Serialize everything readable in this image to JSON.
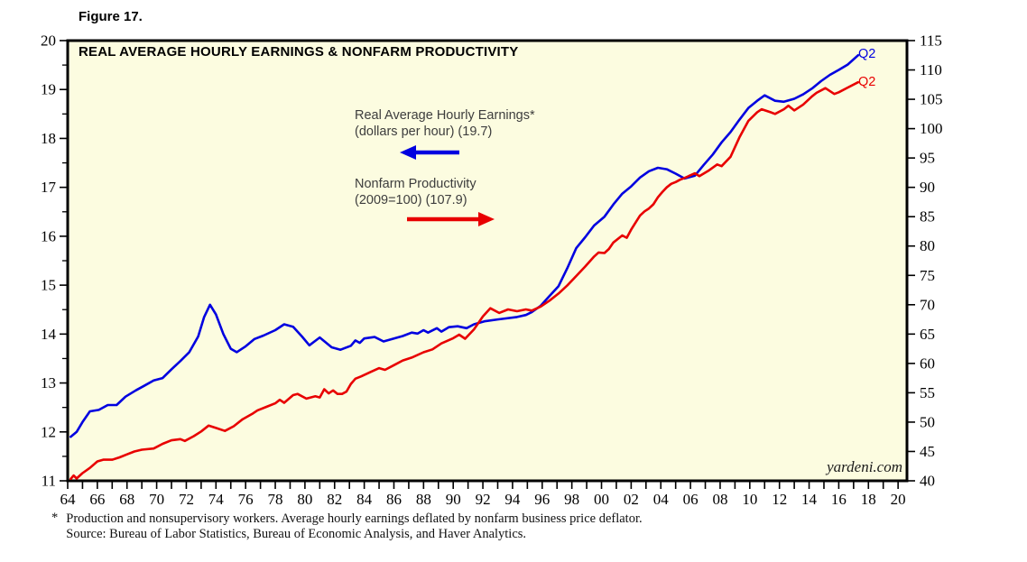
{
  "figure_label": "Figure 17.",
  "chart": {
    "title": "REAL AVERAGE HOURLY EARNINGS & NONFARM PRODUCTIVITY",
    "plot_bg": "#FCFCE0",
    "border_color": "#000000",
    "watermark": "yardeni.com",
    "legend": {
      "earnings": {
        "line1": "Real Average Hourly Earnings*",
        "line2": "(dollars per hour) (19.7)",
        "arrow": "left"
      },
      "productivity": {
        "line1": "Nonfarm Productivity",
        "line2": "(2009=100) (107.9)",
        "arrow": "right"
      }
    },
    "end_labels": {
      "earnings": "Q2",
      "productivity": "Q2"
    }
  },
  "footnote": {
    "asterisk": "*",
    "line1": "Production and nonsupervisory workers. Average hourly earnings deflated by nonfarm business price deflator.",
    "line2": "Source: Bureau of Labor Statistics, Bureau of Economic Analysis, and Haver Analytics."
  },
  "chart_data": {
    "type": "line",
    "title": "REAL AVERAGE HOURLY EARNINGS & NONFARM PRODUCTIVITY",
    "grid": false,
    "legend_position": "inline-annotations-upper-left",
    "x_axis": {
      "range": [
        1964,
        2020.6
      ],
      "tick_every_years": 1,
      "label_years": [
        1964,
        1966,
        1968,
        1970,
        1972,
        1974,
        1976,
        1978,
        1980,
        1982,
        1984,
        1986,
        1988,
        1990,
        1992,
        1994,
        1996,
        1998,
        2000,
        2002,
        2004,
        2006,
        2008,
        2010,
        2012,
        2014,
        2016,
        2018,
        2020
      ],
      "labels": [
        "64",
        "66",
        "68",
        "70",
        "72",
        "74",
        "76",
        "78",
        "80",
        "82",
        "84",
        "86",
        "88",
        "90",
        "92",
        "94",
        "96",
        "98",
        "00",
        "02",
        "04",
        "06",
        "08",
        "10",
        "12",
        "14",
        "16",
        "18",
        "20"
      ]
    },
    "left_axis": {
      "title": "Real Average Hourly Earnings (dollars per hour)",
      "range": [
        11,
        20
      ],
      "tick_step": 1,
      "minor_step": 0.5,
      "labels": [
        "11",
        "12",
        "13",
        "14",
        "15",
        "16",
        "17",
        "18",
        "19",
        "20"
      ]
    },
    "right_axis": {
      "title": "Nonfarm Productivity (2009=100)",
      "range": [
        40,
        115
      ],
      "tick_step": 5,
      "labels": [
        "40",
        "45",
        "50",
        "55",
        "60",
        "65",
        "70",
        "75",
        "80",
        "85",
        "90",
        "95",
        "100",
        "105",
        "110",
        "115"
      ]
    },
    "series": [
      {
        "name": "Real Average Hourly Earnings (dollars per hour)",
        "axis": "left",
        "color": "#0000E0",
        "end_label": "Q2",
        "latest_period": "Q2 2017",
        "latest_value": 19.7,
        "points": [
          [
            1964.2,
            11.9
          ],
          [
            1964.6,
            12.0
          ],
          [
            1965.0,
            12.2
          ],
          [
            1965.5,
            12.42
          ],
          [
            1966.1,
            12.45
          ],
          [
            1966.7,
            12.55
          ],
          [
            1967.3,
            12.55
          ],
          [
            1967.9,
            12.72
          ],
          [
            1968.6,
            12.85
          ],
          [
            1969.2,
            12.95
          ],
          [
            1969.8,
            13.05
          ],
          [
            1970.4,
            13.1
          ],
          [
            1971.0,
            13.28
          ],
          [
            1971.6,
            13.45
          ],
          [
            1972.2,
            13.63
          ],
          [
            1972.8,
            13.95
          ],
          [
            1973.2,
            14.35
          ],
          [
            1973.6,
            14.6
          ],
          [
            1974.0,
            14.4
          ],
          [
            1974.5,
            14.0
          ],
          [
            1975.0,
            13.7
          ],
          [
            1975.4,
            13.63
          ],
          [
            1976.0,
            13.75
          ],
          [
            1976.6,
            13.9
          ],
          [
            1977.2,
            13.97
          ],
          [
            1978.0,
            14.08
          ],
          [
            1978.6,
            14.2
          ],
          [
            1979.2,
            14.15
          ],
          [
            1979.8,
            13.95
          ],
          [
            1980.3,
            13.77
          ],
          [
            1981.0,
            13.93
          ],
          [
            1981.8,
            13.73
          ],
          [
            1982.4,
            13.68
          ],
          [
            1983.1,
            13.76
          ],
          [
            1983.4,
            13.87
          ],
          [
            1983.7,
            13.82
          ],
          [
            1984.0,
            13.91
          ],
          [
            1984.7,
            13.94
          ],
          [
            1985.3,
            13.85
          ],
          [
            1986.0,
            13.91
          ],
          [
            1986.6,
            13.96
          ],
          [
            1987.2,
            14.03
          ],
          [
            1987.6,
            14.01
          ],
          [
            1988.0,
            14.08
          ],
          [
            1988.3,
            14.03
          ],
          [
            1988.9,
            14.12
          ],
          [
            1989.2,
            14.05
          ],
          [
            1989.7,
            14.14
          ],
          [
            1990.3,
            14.16
          ],
          [
            1990.9,
            14.12
          ],
          [
            1991.4,
            14.2
          ],
          [
            1992.1,
            14.26
          ],
          [
            1993.0,
            14.3
          ],
          [
            1994.3,
            14.35
          ],
          [
            1994.9,
            14.39
          ],
          [
            1995.3,
            14.45
          ],
          [
            1995.9,
            14.58
          ],
          [
            1996.5,
            14.78
          ],
          [
            1997.1,
            14.98
          ],
          [
            1997.7,
            15.35
          ],
          [
            1998.3,
            15.76
          ],
          [
            1998.9,
            15.98
          ],
          [
            1999.5,
            16.22
          ],
          [
            2000.2,
            16.4
          ],
          [
            2000.8,
            16.65
          ],
          [
            2001.4,
            16.87
          ],
          [
            2002.0,
            17.02
          ],
          [
            2002.6,
            17.2
          ],
          [
            2003.2,
            17.33
          ],
          [
            2003.8,
            17.4
          ],
          [
            2004.4,
            17.37
          ],
          [
            2005.0,
            17.28
          ],
          [
            2005.6,
            17.18
          ],
          [
            2006.3,
            17.24
          ],
          [
            2006.9,
            17.46
          ],
          [
            2007.5,
            17.67
          ],
          [
            2008.1,
            17.92
          ],
          [
            2008.7,
            18.13
          ],
          [
            2009.3,
            18.38
          ],
          [
            2009.9,
            18.62
          ],
          [
            2010.5,
            18.77
          ],
          [
            2011.0,
            18.88
          ],
          [
            2011.7,
            18.77
          ],
          [
            2012.3,
            18.75
          ],
          [
            2013.0,
            18.81
          ],
          [
            2013.6,
            18.9
          ],
          [
            2014.2,
            19.02
          ],
          [
            2014.8,
            19.17
          ],
          [
            2015.4,
            19.3
          ],
          [
            2016.0,
            19.4
          ],
          [
            2016.6,
            19.51
          ],
          [
            2017.3,
            19.7
          ]
        ]
      },
      {
        "name": "Nonfarm Productivity (2009=100)",
        "axis": "right",
        "color": "#E80000",
        "end_label": "Q2",
        "latest_period": "Q2 2017",
        "latest_value": 107.9,
        "points": [
          [
            1964.2,
            40.3
          ],
          [
            1964.4,
            40.9
          ],
          [
            1964.6,
            40.4
          ],
          [
            1965.0,
            41.3
          ],
          [
            1965.5,
            42.2
          ],
          [
            1966.0,
            43.3
          ],
          [
            1966.4,
            43.6
          ],
          [
            1967.0,
            43.6
          ],
          [
            1967.5,
            44.0
          ],
          [
            1968.0,
            44.5
          ],
          [
            1968.5,
            45.0
          ],
          [
            1969.0,
            45.3
          ],
          [
            1969.8,
            45.5
          ],
          [
            1970.4,
            46.3
          ],
          [
            1971.0,
            46.9
          ],
          [
            1971.6,
            47.1
          ],
          [
            1971.9,
            46.8
          ],
          [
            1972.5,
            47.6
          ],
          [
            1973.0,
            48.4
          ],
          [
            1973.5,
            49.4
          ],
          [
            1974.0,
            49.0
          ],
          [
            1974.6,
            48.5
          ],
          [
            1975.2,
            49.3
          ],
          [
            1975.8,
            50.5
          ],
          [
            1976.5,
            51.5
          ],
          [
            1976.8,
            52.0
          ],
          [
            1977.4,
            52.6
          ],
          [
            1978.0,
            53.2
          ],
          [
            1978.3,
            53.8
          ],
          [
            1978.6,
            53.3
          ],
          [
            1979.2,
            54.6
          ],
          [
            1979.5,
            54.8
          ],
          [
            1980.1,
            54.0
          ],
          [
            1980.7,
            54.4
          ],
          [
            1981.0,
            54.2
          ],
          [
            1981.3,
            55.6
          ],
          [
            1981.6,
            54.9
          ],
          [
            1981.9,
            55.4
          ],
          [
            1982.2,
            54.8
          ],
          [
            1982.5,
            54.8
          ],
          [
            1982.8,
            55.2
          ],
          [
            1983.1,
            56.5
          ],
          [
            1983.4,
            57.4
          ],
          [
            1983.8,
            57.8
          ],
          [
            1984.4,
            58.5
          ],
          [
            1985.0,
            59.2
          ],
          [
            1985.4,
            58.9
          ],
          [
            1986.0,
            59.7
          ],
          [
            1986.6,
            60.5
          ],
          [
            1987.2,
            61.0
          ],
          [
            1988.0,
            61.9
          ],
          [
            1988.6,
            62.4
          ],
          [
            1989.2,
            63.4
          ],
          [
            1990.0,
            64.3
          ],
          [
            1990.4,
            64.9
          ],
          [
            1990.8,
            64.2
          ],
          [
            1991.4,
            65.8
          ],
          [
            1992.0,
            68.0
          ],
          [
            1992.5,
            69.4
          ],
          [
            1993.1,
            68.6
          ],
          [
            1993.7,
            69.2
          ],
          [
            1994.3,
            68.9
          ],
          [
            1994.9,
            69.2
          ],
          [
            1995.3,
            69.0
          ],
          [
            1995.9,
            69.7
          ],
          [
            1996.5,
            70.7
          ],
          [
            1997.1,
            71.9
          ],
          [
            1997.7,
            73.3
          ],
          [
            1998.3,
            74.9
          ],
          [
            1998.9,
            76.5
          ],
          [
            1999.5,
            78.2
          ],
          [
            1999.8,
            78.9
          ],
          [
            2000.2,
            78.8
          ],
          [
            2000.5,
            79.5
          ],
          [
            2000.8,
            80.6
          ],
          [
            2001.4,
            81.8
          ],
          [
            2001.7,
            81.4
          ],
          [
            2002.0,
            82.8
          ],
          [
            2002.3,
            84.0
          ],
          [
            2002.6,
            85.2
          ],
          [
            2002.9,
            85.9
          ],
          [
            2003.2,
            86.4
          ],
          [
            2003.5,
            87.1
          ],
          [
            2003.8,
            88.3
          ],
          [
            2004.1,
            89.2
          ],
          [
            2004.4,
            90.0
          ],
          [
            2004.7,
            90.6
          ],
          [
            2005.0,
            90.9
          ],
          [
            2005.3,
            91.3
          ],
          [
            2005.6,
            91.6
          ],
          [
            2006.3,
            92.4
          ],
          [
            2006.6,
            91.9
          ],
          [
            2007.2,
            92.8
          ],
          [
            2007.8,
            93.9
          ],
          [
            2008.1,
            93.6
          ],
          [
            2008.7,
            95.2
          ],
          [
            2009.3,
            98.5
          ],
          [
            2009.9,
            101.3
          ],
          [
            2010.5,
            102.8
          ],
          [
            2010.8,
            103.3
          ],
          [
            2011.4,
            102.8
          ],
          [
            2011.7,
            102.5
          ],
          [
            2012.3,
            103.3
          ],
          [
            2012.6,
            103.9
          ],
          [
            2013.0,
            103.1
          ],
          [
            2013.6,
            104.1
          ],
          [
            2014.2,
            105.5
          ],
          [
            2014.5,
            106.1
          ],
          [
            2015.1,
            106.9
          ],
          [
            2015.7,
            105.9
          ],
          [
            2016.0,
            106.2
          ],
          [
            2016.6,
            107.0
          ],
          [
            2017.3,
            107.9
          ]
        ]
      }
    ]
  }
}
